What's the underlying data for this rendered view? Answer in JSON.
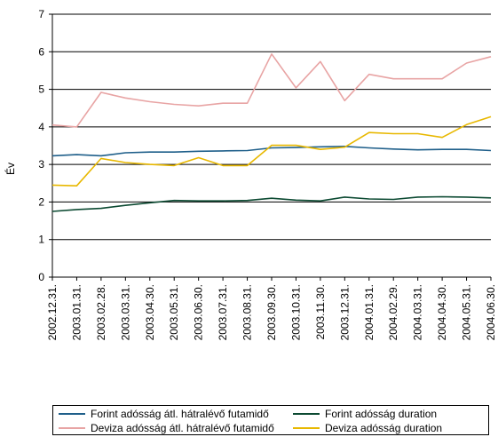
{
  "chart_data": {
    "type": "line",
    "title": "",
    "xlabel": "",
    "ylabel": "Év",
    "ylim": [
      0,
      7
    ],
    "yticks": [
      0,
      1,
      2,
      3,
      4,
      5,
      6,
      7
    ],
    "grid": true,
    "legend_position": "bottom",
    "x": [
      "2002.12.31.",
      "2003.01.31.",
      "2003.02.28.",
      "2003.03.31.",
      "2003.04.30.",
      "2003.05.31.",
      "2003.06.30.",
      "2003.07.31.",
      "2003.08.31.",
      "2003.09.30.",
      "2003.10.31.",
      "2003.11.30.",
      "2003.12.31.",
      "2004.01.31.",
      "2004.02.29.",
      "2004.03.31.",
      "2004.04.30.",
      "2004.05.31.",
      "2004.06.30."
    ],
    "series": [
      {
        "name": "Forint adósság átl. hátralévő futamidő",
        "color": "#1f5f8a",
        "values": [
          3.23,
          3.26,
          3.23,
          3.31,
          3.33,
          3.33,
          3.35,
          3.36,
          3.37,
          3.44,
          3.45,
          3.47,
          3.48,
          3.44,
          3.41,
          3.39,
          3.4,
          3.4,
          3.37
        ]
      },
      {
        "name": "Forint adósság duration",
        "color": "#0c4a32",
        "values": [
          1.75,
          1.8,
          1.83,
          1.91,
          1.98,
          2.04,
          2.03,
          2.03,
          2.04,
          2.1,
          2.05,
          2.03,
          2.13,
          2.08,
          2.07,
          2.13,
          2.14,
          2.13,
          2.11
        ]
      },
      {
        "name": "Deviza adósság átl. hátralévő futamidő",
        "color": "#e8a4a4",
        "values": [
          4.05,
          4.0,
          4.92,
          4.77,
          4.67,
          4.6,
          4.56,
          4.63,
          4.63,
          5.94,
          5.04,
          5.74,
          4.7,
          5.4,
          5.28,
          5.28,
          5.28,
          5.7,
          5.87
        ]
      },
      {
        "name": "Deviza adósság duration",
        "color": "#e8b800",
        "values": [
          2.45,
          2.43,
          3.16,
          3.05,
          3.0,
          2.97,
          3.18,
          2.97,
          2.97,
          3.51,
          3.51,
          3.4,
          3.46,
          3.85,
          3.82,
          3.82,
          3.72,
          4.06,
          4.27
        ]
      }
    ]
  }
}
